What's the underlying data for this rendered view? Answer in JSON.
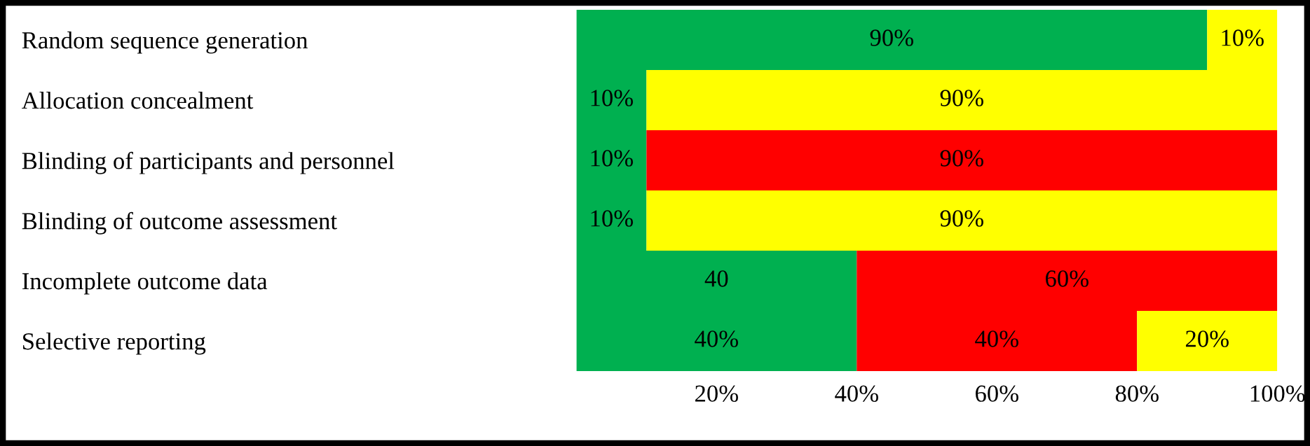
{
  "chart_data": {
    "type": "bar",
    "orientation": "horizontal",
    "stacked": true,
    "categories": [
      "Random sequence generation",
      "Allocation concealment",
      "Blinding of participants and personnel",
      "Blinding of outcome assessment",
      "Incomplete outcome data",
      "Selective reporting"
    ],
    "series": [
      {
        "color": "#00b050",
        "values": [
          90,
          10,
          10,
          10,
          40,
          40
        ],
        "value_labels": [
          "90%",
          "10%",
          "10%",
          "10%",
          "40",
          "40%"
        ]
      },
      {
        "color": "#ff0000",
        "values": [
          0,
          0,
          90,
          0,
          60,
          40
        ],
        "value_labels": [
          null,
          null,
          "90%",
          null,
          "60%",
          "40%"
        ]
      },
      {
        "color": "#ffff00",
        "values": [
          10,
          90,
          0,
          90,
          0,
          20
        ],
        "value_labels": [
          "10%",
          "90%",
          null,
          "90%",
          null,
          "20%"
        ]
      }
    ],
    "xlim": [
      0,
      100
    ],
    "xticks": [
      {
        "value": 20,
        "label": "20%"
      },
      {
        "value": 40,
        "label": "40%"
      },
      {
        "value": 60,
        "label": "60%"
      },
      {
        "value": 80,
        "label": "80%"
      },
      {
        "value": 100,
        "label": "100%"
      }
    ],
    "grid": false
  }
}
